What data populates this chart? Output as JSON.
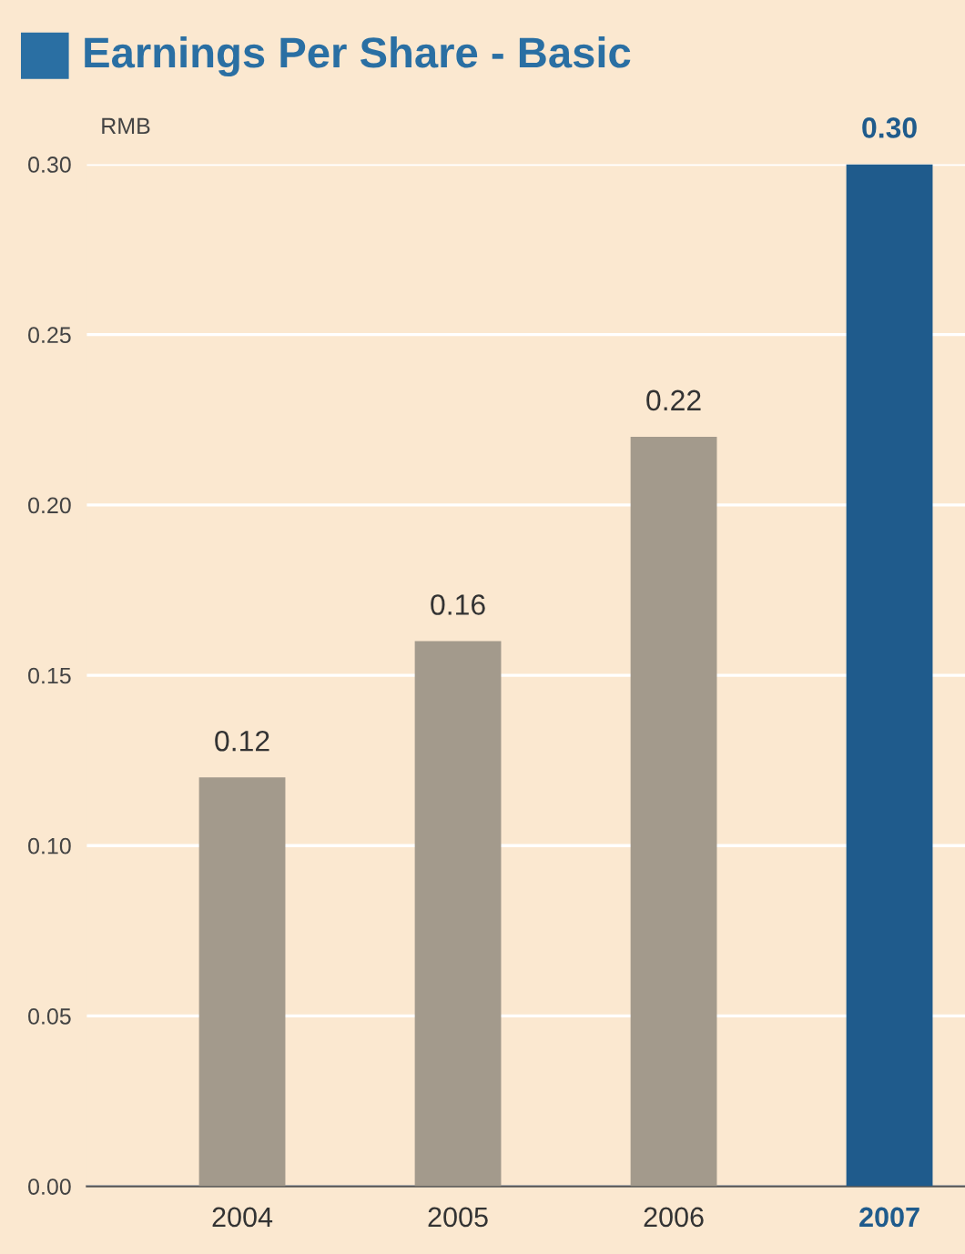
{
  "chart_data": {
    "type": "bar",
    "title": "Earnings Per Share - Basic",
    "ylabel": "RMB",
    "categories": [
      "2004",
      "2005",
      "2006",
      "2007"
    ],
    "values": [
      0.12,
      0.16,
      0.22,
      0.3
    ],
    "colors": [
      "#a39a8c",
      "#a39a8c",
      "#a39a8c",
      "#1f5b8c"
    ],
    "ylim": [
      0,
      0.3
    ],
    "yticks": [
      "0.00",
      "0.05",
      "0.10",
      "0.15",
      "0.20",
      "0.25",
      "0.30"
    ],
    "value_labels": [
      "0.12",
      "0.16",
      "0.22",
      "0.30"
    ],
    "grid": "y",
    "legend": false
  }
}
